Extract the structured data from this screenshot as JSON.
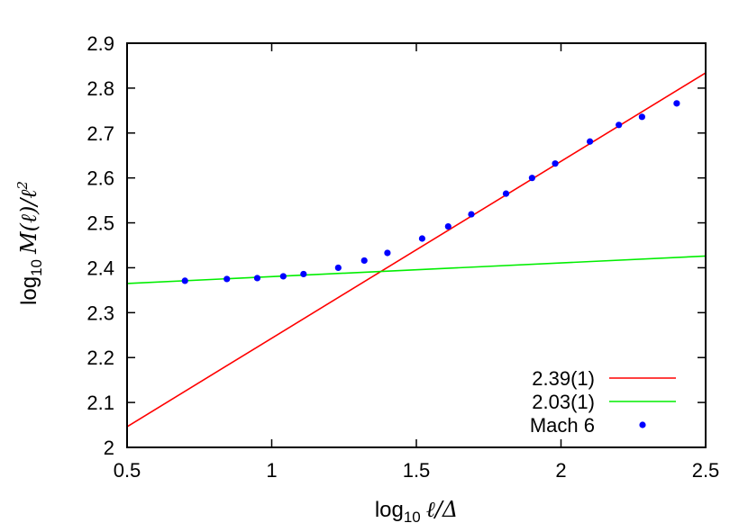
{
  "chart_data": {
    "type": "scatter",
    "xlabel": {
      "prefix": "log",
      "sub": "10",
      "math": "ℓ/Δ"
    },
    "ylabel": {
      "prefix": "log",
      "sub": "10",
      "math": "M(ℓ)/ℓ",
      "sup": "2"
    },
    "xlim": [
      0.5,
      2.5
    ],
    "ylim": [
      2.0,
      2.9
    ],
    "xticks": [
      "0.5",
      "1",
      "1.5",
      "2",
      "2.5"
    ],
    "yticks": [
      "2",
      "2.1",
      "2.2",
      "2.3",
      "2.4",
      "2.5",
      "2.6",
      "2.7",
      "2.8",
      "2.9"
    ],
    "grid": false,
    "legend_position": "bottom-right",
    "series": [
      {
        "name": "2.39(1)",
        "kind": "line",
        "color": "#ff0000",
        "x": [
          0.5,
          2.5
        ],
        "y": [
          2.046,
          2.834
        ]
      },
      {
        "name": "2.03(1)",
        "kind": "line",
        "color": "#00ee00",
        "x": [
          0.5,
          2.5
        ],
        "y": [
          2.365,
          2.426
        ]
      },
      {
        "name": "Mach 6",
        "kind": "points",
        "color": "#0000ff",
        "x": [
          0.7,
          0.845,
          0.95,
          1.04,
          1.11,
          1.23,
          1.32,
          1.4,
          1.52,
          1.61,
          1.69,
          1.81,
          1.9,
          1.98,
          2.1,
          2.2,
          2.28,
          2.4
        ],
        "y": [
          2.371,
          2.375,
          2.377,
          2.381,
          2.386,
          2.4,
          2.416,
          2.433,
          2.465,
          2.492,
          2.519,
          2.565,
          2.6,
          2.632,
          2.681,
          2.718,
          2.736,
          2.766
        ]
      }
    ]
  }
}
